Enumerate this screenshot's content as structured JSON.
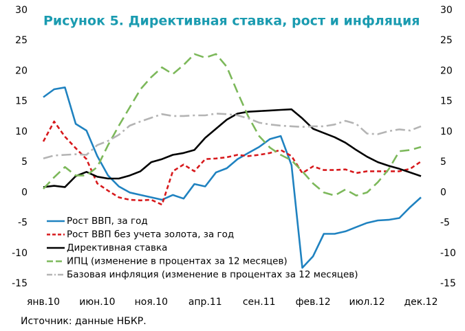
{
  "chart_data": {
    "type": "line",
    "title": "Рисунок 5. Директивная ставка, рост и инфляция",
    "source": "Источник: данные НБКР.",
    "categories": [
      "янв.10",
      null,
      null,
      null,
      null,
      "июн.10",
      null,
      null,
      null,
      null,
      "ноя.10",
      null,
      null,
      null,
      null,
      "апр.11",
      null,
      null,
      null,
      null,
      "сен.11",
      null,
      null,
      null,
      null,
      "фев.12",
      null,
      null,
      null,
      null,
      "июл.12",
      null,
      null,
      null,
      null,
      "дек.12"
    ],
    "ylim": [
      -15,
      30
    ],
    "yticks": [
      -15,
      -10,
      -5,
      0,
      5,
      10,
      15,
      20,
      25,
      30
    ],
    "y2lim": [
      -15,
      30
    ],
    "y2ticks": [
      -15,
      -10,
      -5,
      0,
      5,
      10,
      15,
      20,
      25,
      30
    ],
    "grid": false,
    "legend": "lower left",
    "series": [
      {
        "name": "Рост ВВП, за год",
        "color": "#1f82c0",
        "style": "solid",
        "values": [
          15.7,
          17,
          17.3,
          11.3,
          10.2,
          6,
          2.8,
          1,
          0,
          -0.4,
          -0.8,
          -1.2,
          -0.4,
          -1,
          1.4,
          1,
          3.3,
          4,
          5.5,
          6.5,
          7.5,
          8.8,
          9.3,
          4.5,
          -12.4,
          -10.5,
          -6.8,
          -6.8,
          -6.4,
          -5.7,
          -5,
          -4.6,
          -4.5,
          -4.2,
          -2.4,
          -0.8
        ]
      },
      {
        "name": "Рост ВВП без учета золота, за год",
        "color": "#d7191c",
        "style": "dashed",
        "values": [
          8.4,
          11.7,
          9.2,
          7.3,
          5.5,
          1.5,
          0.3,
          -0.8,
          -1.2,
          -1.3,
          -1.2,
          -2,
          3.5,
          4.6,
          3.5,
          5.5,
          5.6,
          5.8,
          6.2,
          6,
          6.2,
          6.5,
          7,
          6,
          3.2,
          4.3,
          3.7,
          3.7,
          3.8,
          3.2,
          3.5,
          3.5,
          3.5,
          3.5,
          3.9,
          5.1
        ]
      },
      {
        "name": "Директивная ставка",
        "color": "#000000",
        "style": "solid",
        "values": [
          0.9,
          1.1,
          0.9,
          2.7,
          3.4,
          2.6,
          2.3,
          2.3,
          2.8,
          3.5,
          5,
          5.5,
          6.2,
          6.5,
          7,
          9,
          10.5,
          12,
          13,
          13.3,
          13.4,
          13.5,
          13.6,
          13.7,
          12.2,
          10.5,
          9.8,
          9.1,
          8.2,
          7,
          5.9,
          5,
          4.4,
          3.9,
          3.3,
          2.7
        ]
      },
      {
        "name": "ИПЦ  (изменение в процентах за 12 месяцев)",
        "color": "#7cb85a",
        "style": "longdash",
        "values": [
          0.6,
          2.5,
          4.2,
          2.8,
          2.8,
          4.2,
          7.8,
          11,
          14,
          17,
          19,
          20.6,
          19.5,
          21,
          22.8,
          22.2,
          22.8,
          20.7,
          16.5,
          12.5,
          9.3,
          7.4,
          6.2,
          5.3,
          3.5,
          1.5,
          0,
          -0.5,
          0.5,
          -0.5,
          0,
          1.7,
          3.8,
          6.8,
          7,
          7.5
        ]
      },
      {
        "name": "Базовая инфляция (изменение в процентах за 12 месяцев)",
        "color": "#b4b4b4",
        "style": "dashdot",
        "values": [
          5.6,
          6.1,
          6.2,
          6.3,
          6.2,
          7.8,
          8.5,
          9.5,
          11,
          11.7,
          12.3,
          12.9,
          12.6,
          12.6,
          12.7,
          12.7,
          13,
          12.9,
          12.7,
          12.2,
          11.5,
          11.2,
          11,
          10.9,
          10.8,
          10.9,
          10.9,
          11.2,
          11.8,
          11.3,
          9.7,
          9.6,
          10.1,
          10.4,
          10.2,
          10.9
        ]
      }
    ]
  }
}
